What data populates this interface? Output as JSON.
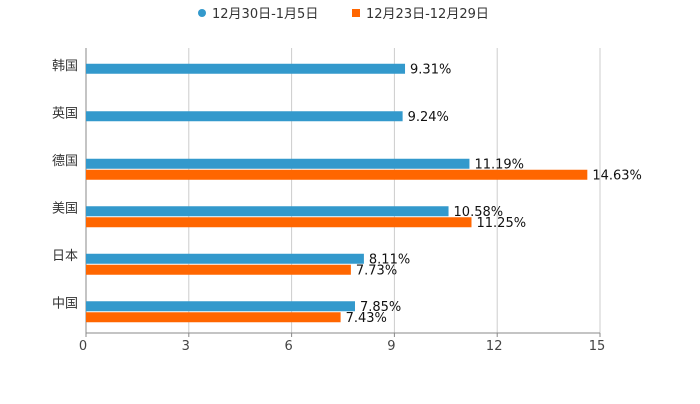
{
  "chart_data": {
    "type": "bar",
    "orientation": "horizontal",
    "title": "",
    "xlabel": "",
    "ylabel": "",
    "categories": [
      "韩国",
      "英国",
      "德国",
      "美国",
      "日本",
      "中国"
    ],
    "series": [
      {
        "name": "12月30日-1月5日",
        "color": "#3399cc",
        "values": [
          9.31,
          9.24,
          11.19,
          10.58,
          8.11,
          7.85
        ],
        "labels": [
          "9.31%",
          "9.24%",
          "11.19%",
          "10.58%",
          "8.11%",
          "7.85%"
        ]
      },
      {
        "name": "12月23日-12月29日",
        "color": "#ff6600",
        "values": [
          null,
          null,
          14.63,
          11.25,
          7.73,
          7.43
        ],
        "labels": [
          null,
          null,
          "14.63%",
          "11.25%",
          "7.73%",
          "7.43%"
        ]
      }
    ],
    "xlim": [
      0,
      15
    ],
    "xticks": [
      0,
      3,
      6,
      9,
      12,
      15
    ],
    "xtick_labels": [
      "0",
      "3",
      "6",
      "9",
      "12",
      "15"
    ],
    "grid": true,
    "legend_position": "top-center"
  },
  "colors": {
    "grid": "#cccccc",
    "axis": "#888888"
  }
}
